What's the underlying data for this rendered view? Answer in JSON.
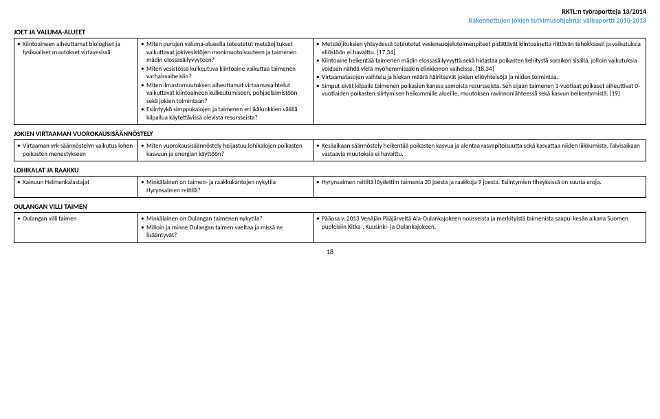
{
  "header": {
    "line1": "RKTL:n työraportteja 13/2014",
    "line2": "Rakennettujen jokien tutkimusohjelma: väliraportti 2010-2013"
  },
  "sections": [
    {
      "title": "JOET JA VALUMA-ALUEET",
      "rows": [
        {
          "c1": [
            "Kiintoaineen aiheuttamat biologiset ja fysikaaliset muutokset virtavesissä"
          ],
          "c2": [
            "Miten purojen valuma-alueella toteutetut metsäojitukset vaikuttavat jokivesistöjen monimuotoisuuteen ja taimenen mädin elossasäilyvyyteen?",
            "Miten vesistössä kulkeutuva kiintoaine vaikuttaa taimenen varhaisvaiheisiin?",
            "Miten ilmastomuutoksen aiheuttamat virtaamavaihtelut vaikuttavat kiintoaineen kulkeutumiseen, pohjaeläimistöön sekä jokien toimintaan?",
            "Esiintyykö simppukalojen ja taimenen eri ikäluokkien välillä kilpailua käytettävissä olevista resursseista?"
          ],
          "c3": [
            "Metsäojituksien yhteydessä toteutetut vesiensuojelutoimenpiteet pidättävät kiintoainetta riittävän tehokkaasti ja vaikutuksia eliöstöön ei havaittu. [17,34]",
            "Kiintoaine heikentää taimenen mädin elossasäilyvyyttä sekä hidastaa poikasten kehitystä soraikon sisällä, jolloin vaikutuksia voidaan nähdä vielä myöhemmissäkin elinkierron vaiheissa. [18,34]",
            "Virtaamatasojen vaihtelu ja hiekan määrä häiritsevät jokien eliöyhteisöjä ja niiden toimintaa.",
            "Simput eivät kilpaile taimenen poikasien kanssa samoista resursseista. Sen sijaan taimenen 1-vuotiaat poikaset aiheuttivat 0-vuotiaiden poikasten siirtymisen heikommille alueille, muutoksen ravinnonlähteessä sekä kasvun heikentymistä. [19]"
          ]
        }
      ]
    },
    {
      "title": "JOKIEN VIRTAAMAN VUOROKAUSISÄÄNNÖSTELY",
      "rows": [
        {
          "c1": [
            "Virtaaman vrk-säännöstelyn vaikutus lohen poikasten menestykseen"
          ],
          "c2": [
            "Miten vuorokausisäännöstely heijastuu lohikalojen poikasten kasvuun ja energian käyttöön?"
          ],
          "c3": [
            "Kesäaikaan säännöstely heikentää poikasten kasvua ja alentaa rasvapitoisuutta sekä kasvattaa niiden liikkumista. Talvisaikaan vastaavia muutoksia ei havaittu."
          ]
        }
      ]
    },
    {
      "title": "LOHIKALAT JA RAAKKU",
      "rows": [
        {
          "c1": [
            "Kainuun Helmenkalastajat"
          ],
          "c2": [
            "Minkälainen on taimen- ja raakkukantojen nykytila Hyrynsalmen reitillä?"
          ],
          "c3": [
            "Hyrynsalmen reitiltä löydettiin taimenia 20 joesta ja raakkuja 9 joesta. Esiintymien tiheyksissä on suuria eroja."
          ]
        }
      ]
    },
    {
      "title": "OULANGAN VILLI TAIMEN",
      "rows": [
        {
          "c1": [
            "Oulangan villi taimen"
          ],
          "c2": [
            "Minkälainen on Oulangan taimenen nykytila?",
            "Milloin ja minne Oulangan taimen vaeltaa ja missä ne lisääntyvät?"
          ],
          "c3": [
            "Pääosa v. 2013 Venäjän Pääjärveltä Ala-Oulankajokeen nousseista ja merkityistä taimenista saapui kesän aikana Suomen puoleisiin Kitka-, Kuusinki- ja Oulankajokeen."
          ]
        }
      ]
    }
  ],
  "pageNumber": "18"
}
